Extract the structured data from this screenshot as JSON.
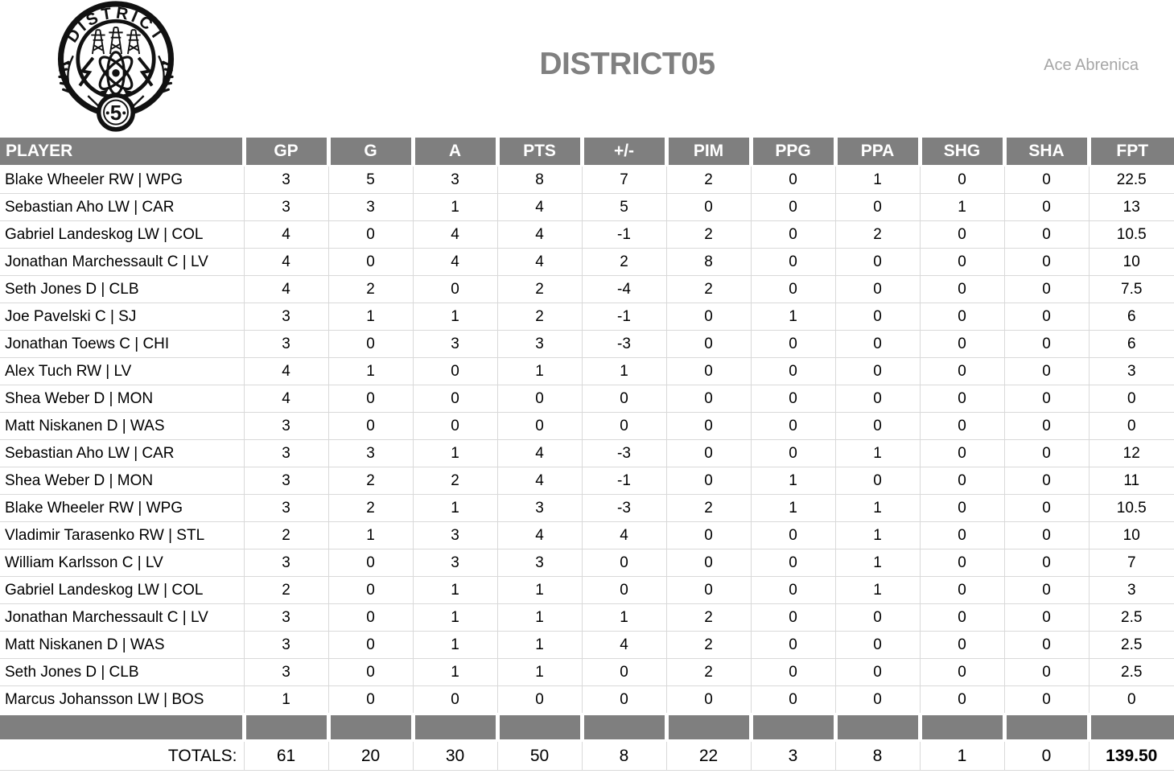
{
  "header": {
    "title": "DISTRICT05",
    "author": "Ace Abrenica",
    "logo": {
      "arc_text": "DISTRICT",
      "badge_number": "5"
    }
  },
  "colors": {
    "header_bg": "#7f7f7f",
    "separator_bg": "#7f7f7f",
    "gridline": "#d9d9d9",
    "title_text": "#808080",
    "author_text": "#a6a6a6",
    "body_text": "#000000",
    "logo_ink": "#111111"
  },
  "table": {
    "columns": [
      "PLAYER",
      "GP",
      "G",
      "A",
      "PTS",
      "+/-",
      "PIM",
      "PPG",
      "PPA",
      "SHG",
      "SHA",
      "FPT"
    ],
    "column_ids": [
      "player",
      "gp",
      "g",
      "a",
      "pts",
      "plus-minus",
      "pim",
      "ppg",
      "ppa",
      "shg",
      "sha",
      "fpt"
    ],
    "rows": [
      {
        "player": "Blake Wheeler RW | WPG",
        "stats": [
          3,
          5,
          3,
          8,
          7,
          2,
          0,
          1,
          0,
          0,
          22.5
        ]
      },
      {
        "player": "Sebastian Aho LW | CAR",
        "stats": [
          3,
          3,
          1,
          4,
          5,
          0,
          0,
          0,
          1,
          0,
          13
        ]
      },
      {
        "player": "Gabriel Landeskog LW | COL",
        "stats": [
          4,
          0,
          4,
          4,
          -1,
          2,
          0,
          2,
          0,
          0,
          10.5
        ]
      },
      {
        "player": "Jonathan Marchessault C | LV",
        "stats": [
          4,
          0,
          4,
          4,
          2,
          8,
          0,
          0,
          0,
          0,
          10
        ]
      },
      {
        "player": "Seth Jones D | CLB",
        "stats": [
          4,
          2,
          0,
          2,
          -4,
          2,
          0,
          0,
          0,
          0,
          7.5
        ]
      },
      {
        "player": "Joe Pavelski C | SJ",
        "stats": [
          3,
          1,
          1,
          2,
          -1,
          0,
          1,
          0,
          0,
          0,
          6
        ]
      },
      {
        "player": "Jonathan Toews C | CHI",
        "stats": [
          3,
          0,
          3,
          3,
          -3,
          0,
          0,
          0,
          0,
          0,
          6
        ]
      },
      {
        "player": "Alex Tuch RW | LV",
        "stats": [
          4,
          1,
          0,
          1,
          1,
          0,
          0,
          0,
          0,
          0,
          3
        ]
      },
      {
        "player": "Shea Weber D | MON",
        "stats": [
          4,
          0,
          0,
          0,
          0,
          0,
          0,
          0,
          0,
          0,
          0
        ]
      },
      {
        "player": "Matt Niskanen D | WAS",
        "stats": [
          3,
          0,
          0,
          0,
          0,
          0,
          0,
          0,
          0,
          0,
          0
        ]
      },
      {
        "player": "Sebastian Aho LW | CAR",
        "stats": [
          3,
          3,
          1,
          4,
          -3,
          0,
          0,
          1,
          0,
          0,
          12
        ]
      },
      {
        "player": "Shea Weber D | MON",
        "stats": [
          3,
          2,
          2,
          4,
          -1,
          0,
          1,
          0,
          0,
          0,
          11
        ]
      },
      {
        "player": "Blake Wheeler RW | WPG",
        "stats": [
          3,
          2,
          1,
          3,
          -3,
          2,
          1,
          1,
          0,
          0,
          10.5
        ]
      },
      {
        "player": "Vladimir Tarasenko RW | STL",
        "stats": [
          2,
          1,
          3,
          4,
          4,
          0,
          0,
          1,
          0,
          0,
          10
        ]
      },
      {
        "player": "William Karlsson C | LV",
        "stats": [
          3,
          0,
          3,
          3,
          0,
          0,
          0,
          1,
          0,
          0,
          7
        ]
      },
      {
        "player": "Gabriel Landeskog LW | COL",
        "stats": [
          2,
          0,
          1,
          1,
          0,
          0,
          0,
          1,
          0,
          0,
          3
        ]
      },
      {
        "player": "Jonathan Marchessault C | LV",
        "stats": [
          3,
          0,
          1,
          1,
          1,
          2,
          0,
          0,
          0,
          0,
          2.5
        ]
      },
      {
        "player": "Matt Niskanen D | WAS",
        "stats": [
          3,
          0,
          1,
          1,
          4,
          2,
          0,
          0,
          0,
          0,
          2.5
        ]
      },
      {
        "player": "Seth Jones D | CLB",
        "stats": [
          3,
          0,
          1,
          1,
          0,
          2,
          0,
          0,
          0,
          0,
          2.5
        ]
      },
      {
        "player": "Marcus Johansson LW | BOS",
        "stats": [
          1,
          0,
          0,
          0,
          0,
          0,
          0,
          0,
          0,
          0,
          0
        ]
      }
    ],
    "totals_label": "TOTALS:",
    "totals": [
      61,
      20,
      30,
      50,
      8,
      22,
      3,
      8,
      1,
      0,
      "139.50"
    ]
  }
}
